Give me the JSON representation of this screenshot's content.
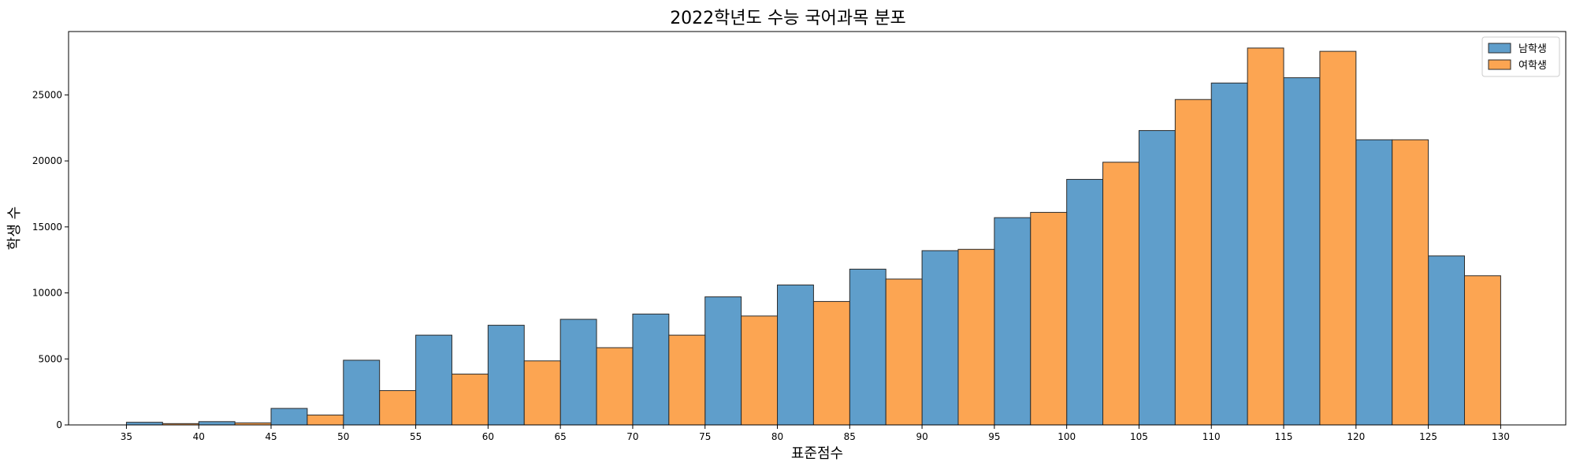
{
  "chart_data": {
    "type": "bar",
    "title": "2022학년도 수능 국어과목 분포",
    "xlabel": "표준점수",
    "ylabel": "학생 수",
    "x_ticks": [
      35,
      40,
      45,
      50,
      55,
      60,
      65,
      70,
      75,
      80,
      85,
      90,
      95,
      100,
      105,
      110,
      115,
      120,
      125,
      130
    ],
    "xlim": [
      31,
      134.5
    ],
    "y_ticks": [
      0,
      5000,
      10000,
      15000,
      20000,
      25000
    ],
    "ylim": [
      0,
      29800
    ],
    "bin_starts": [
      35,
      40,
      45,
      50,
      55,
      60,
      65,
      70,
      75,
      80,
      85,
      90,
      95,
      100,
      105,
      110,
      115,
      120,
      125
    ],
    "bin_width": 5,
    "grid": false,
    "legend_position": "top-right",
    "series": [
      {
        "name": "남학생",
        "color": "#5f9ecb",
        "values": [
          200,
          250,
          1250,
          4900,
          6800,
          7550,
          8000,
          8400,
          9700,
          10600,
          11800,
          13200,
          15700,
          18600,
          22300,
          25900,
          26300,
          21600,
          12800
        ]
      },
      {
        "name": "여학생",
        "color": "#fca552",
        "values": [
          100,
          150,
          750,
          2600,
          3850,
          4850,
          5850,
          6800,
          8250,
          9350,
          11050,
          13300,
          16100,
          19900,
          24650,
          28550,
          28300,
          21600,
          11300
        ]
      }
    ]
  }
}
